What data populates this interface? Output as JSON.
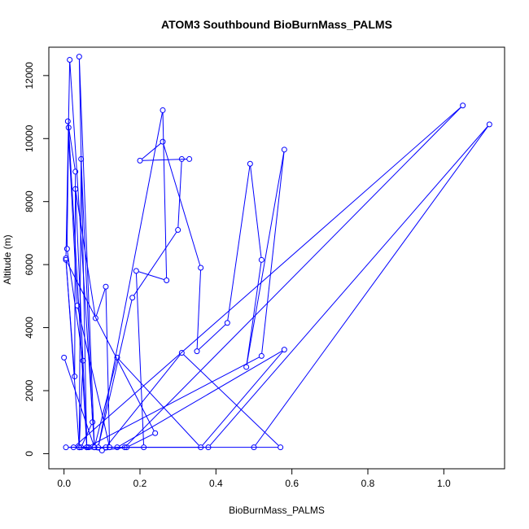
{
  "chart_data": {
    "type": "line",
    "title": "ATOM3 Southbound BioBurnMass_PALMS",
    "xlabel": "BioBurnMass_PALMS",
    "ylabel": "Altitude (m)",
    "xlim": [
      -0.04,
      1.16
    ],
    "ylim": [
      -480,
      12900
    ],
    "x_ticks": [
      0.0,
      0.2,
      0.4,
      0.6,
      0.8,
      1.0
    ],
    "x_tick_labels": [
      "0.0",
      "0.2",
      "0.4",
      "0.6",
      "0.8",
      "1.0"
    ],
    "y_ticks": [
      0,
      2000,
      4000,
      6000,
      8000,
      10000,
      12000
    ],
    "y_tick_labels": [
      "0",
      "2000",
      "4000",
      "6000",
      "8000",
      "10000",
      "12000"
    ],
    "grid": false,
    "legend": "none",
    "markers": "open-circle",
    "series": [
      {
        "color": "#0000ff",
        "x": [
          0.0,
          0.08,
          0.015,
          0.005,
          0.04,
          0.05,
          0.008,
          0.012,
          0.06,
          0.03,
          0.083,
          0.11,
          0.12,
          0.035,
          0.01,
          0.03,
          0.028,
          0.005,
          0.24,
          0.165,
          0.1,
          0.04,
          0.045,
          0.075,
          0.045,
          0.065,
          0.21,
          0.19,
          0.27,
          0.26,
          0.09,
          0.18,
          0.3,
          0.31,
          0.33,
          0.2,
          0.26,
          0.36,
          0.35,
          0.43,
          0.49,
          0.52,
          0.48,
          0.58,
          0.52,
          0.06,
          0.04,
          0.08,
          0.14,
          0.36,
          0.58,
          0.14,
          0.16,
          1.05,
          0.025,
          0.11,
          0.31,
          0.57,
          0.005,
          0.04,
          0.38,
          1.12,
          0.5
        ],
        "y": [
          3050,
          200,
          12500,
          6200,
          200,
          2950,
          6500,
          10350,
          200,
          8400,
          4300,
          5300,
          200,
          4700,
          10550,
          8950,
          2450,
          6150,
          650,
          200,
          100,
          200,
          9350,
          1000,
          200,
          200,
          200,
          5800,
          5500,
          10900,
          200,
          4950,
          7100,
          9350,
          9350,
          9300,
          9900,
          5900,
          3250,
          4150,
          9200,
          6150,
          2750,
          9650,
          3100,
          200,
          12600,
          200,
          3050,
          200,
          3300,
          200,
          200,
          11050,
          200,
          200,
          3200,
          200,
          200,
          200,
          200,
          10450,
          200
        ]
      }
    ]
  }
}
